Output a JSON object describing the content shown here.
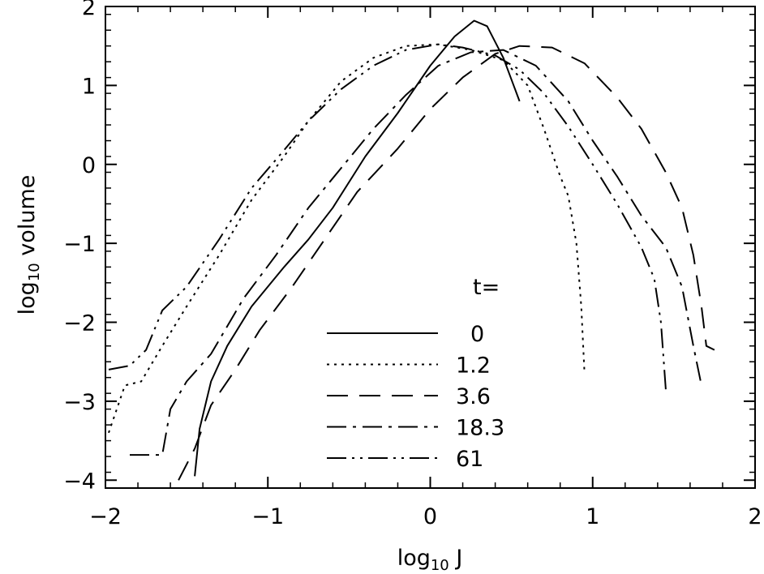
{
  "chart_data": {
    "type": "line",
    "title": "",
    "xlabel": "log",
    "xlabel_sub": "10",
    "xlabel_suffix": " J",
    "ylabel": "log",
    "ylabel_sub": "10",
    "ylabel_suffix": " volume",
    "xlim": [
      -2,
      2
    ],
    "ylim": [
      -4.1,
      2
    ],
    "x_ticks": [
      -2,
      -1,
      0,
      1,
      2
    ],
    "x_tick_labels": [
      "−2",
      "−1",
      "0",
      "1",
      "2"
    ],
    "y_ticks": [
      -4,
      -3,
      -2,
      -1,
      0,
      1,
      2
    ],
    "y_tick_labels": [
      "−4",
      "−3",
      "−2",
      "−1",
      "0",
      "1",
      "2"
    ],
    "grid": false,
    "legend": {
      "title": "t=",
      "placement": "bottom-center"
    },
    "series": [
      {
        "name": "0",
        "dash": "solid",
        "points": [
          [
            -1.45,
            -3.95
          ],
          [
            -1.42,
            -3.35
          ],
          [
            -1.35,
            -2.75
          ],
          [
            -1.25,
            -2.3
          ],
          [
            -1.1,
            -1.8
          ],
          [
            -0.9,
            -1.3
          ],
          [
            -0.75,
            -0.95
          ],
          [
            -0.6,
            -0.55
          ],
          [
            -0.4,
            0.1
          ],
          [
            -0.2,
            0.65
          ],
          [
            0.0,
            1.25
          ],
          [
            0.15,
            1.62
          ],
          [
            0.27,
            1.82
          ],
          [
            0.35,
            1.75
          ],
          [
            0.45,
            1.35
          ],
          [
            0.55,
            0.8
          ]
        ]
      },
      {
        "name": "1.2",
        "dash": "dotted",
        "points": [
          [
            -1.98,
            -3.4
          ],
          [
            -1.88,
            -2.8
          ],
          [
            -1.78,
            -2.75
          ],
          [
            -1.65,
            -2.3
          ],
          [
            -1.5,
            -1.8
          ],
          [
            -1.3,
            -1.15
          ],
          [
            -1.1,
            -0.45
          ],
          [
            -0.9,
            0.1
          ],
          [
            -0.75,
            0.55
          ],
          [
            -0.55,
            1.05
          ],
          [
            -0.35,
            1.35
          ],
          [
            -0.15,
            1.5
          ],
          [
            0.05,
            1.52
          ],
          [
            0.25,
            1.45
          ],
          [
            0.45,
            1.32
          ],
          [
            0.6,
            1.0
          ],
          [
            0.7,
            0.45
          ],
          [
            0.8,
            -0.15
          ],
          [
            0.85,
            -0.4
          ],
          [
            0.9,
            -1.0
          ],
          [
            0.93,
            -1.8
          ],
          [
            0.95,
            -2.65
          ]
        ]
      },
      {
        "name": "3.6",
        "dash": "dashed",
        "points": [
          [
            -1.55,
            -4.0
          ],
          [
            -1.45,
            -3.6
          ],
          [
            -1.35,
            -3.05
          ],
          [
            -1.2,
            -2.6
          ],
          [
            -1.05,
            -2.1
          ],
          [
            -0.85,
            -1.55
          ],
          [
            -0.65,
            -0.95
          ],
          [
            -0.45,
            -0.35
          ],
          [
            -0.2,
            0.2
          ],
          [
            0.0,
            0.7
          ],
          [
            0.2,
            1.1
          ],
          [
            0.4,
            1.4
          ],
          [
            0.55,
            1.5
          ],
          [
            0.75,
            1.48
          ],
          [
            0.95,
            1.28
          ],
          [
            1.15,
            0.85
          ],
          [
            1.3,
            0.45
          ],
          [
            1.45,
            -0.1
          ],
          [
            1.55,
            -0.55
          ],
          [
            1.62,
            -1.15
          ],
          [
            1.67,
            -1.8
          ],
          [
            1.7,
            -2.3
          ],
          [
            1.75,
            -2.35
          ]
        ]
      },
      {
        "name": "18.3",
        "dash": "dashdot",
        "points": [
          [
            -1.85,
            -3.68
          ],
          [
            -1.65,
            -3.68
          ],
          [
            -1.6,
            -3.1
          ],
          [
            -1.5,
            -2.75
          ],
          [
            -1.35,
            -2.4
          ],
          [
            -1.15,
            -1.7
          ],
          [
            -0.95,
            -1.15
          ],
          [
            -0.75,
            -0.55
          ],
          [
            -0.55,
            -0.05
          ],
          [
            -0.35,
            0.45
          ],
          [
            -0.15,
            0.88
          ],
          [
            0.05,
            1.25
          ],
          [
            0.25,
            1.42
          ],
          [
            0.45,
            1.45
          ],
          [
            0.65,
            1.25
          ],
          [
            0.85,
            0.8
          ],
          [
            1.0,
            0.3
          ],
          [
            1.15,
            -0.15
          ],
          [
            1.3,
            -0.65
          ],
          [
            1.45,
            -1.05
          ],
          [
            1.55,
            -1.55
          ],
          [
            1.62,
            -2.3
          ],
          [
            1.67,
            -2.8
          ]
        ]
      },
      {
        "name": "61",
        "dash": "dashdotdot",
        "points": [
          [
            -1.98,
            -2.6
          ],
          [
            -1.85,
            -2.55
          ],
          [
            -1.75,
            -2.35
          ],
          [
            -1.65,
            -1.85
          ],
          [
            -1.5,
            -1.55
          ],
          [
            -1.3,
            -0.95
          ],
          [
            -1.1,
            -0.3
          ],
          [
            -0.9,
            0.18
          ],
          [
            -0.75,
            0.55
          ],
          [
            -0.55,
            0.95
          ],
          [
            -0.35,
            1.25
          ],
          [
            -0.15,
            1.45
          ],
          [
            0.05,
            1.52
          ],
          [
            0.2,
            1.48
          ],
          [
            0.4,
            1.38
          ],
          [
            0.55,
            1.2
          ],
          [
            0.7,
            0.9
          ],
          [
            0.85,
            0.48
          ],
          [
            1.0,
            0.0
          ],
          [
            1.15,
            -0.5
          ],
          [
            1.3,
            -1.05
          ],
          [
            1.38,
            -1.45
          ],
          [
            1.42,
            -2.0
          ],
          [
            1.45,
            -2.85
          ]
        ]
      }
    ]
  }
}
